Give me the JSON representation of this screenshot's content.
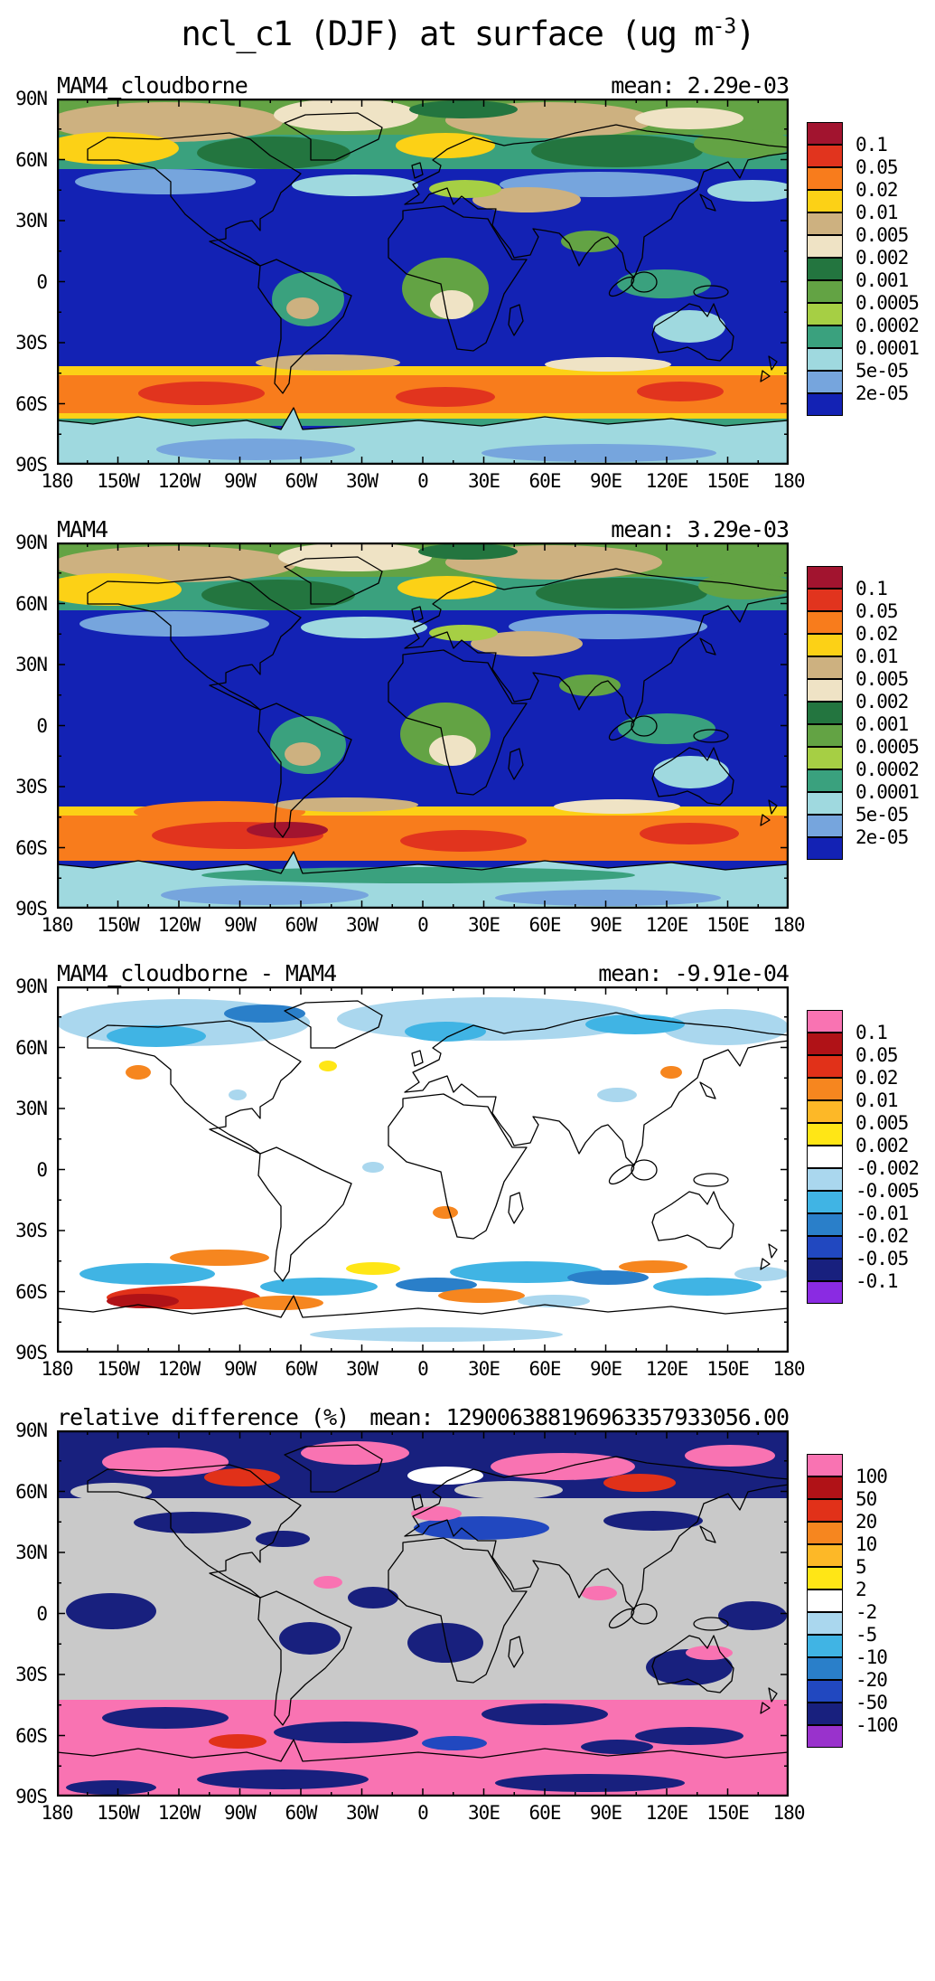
{
  "figure": {
    "title_full": "ncl_c1 (DJF) at surface (ug m-3)"
  },
  "main_title": {
    "pre": "ncl_c1 (DJF) at surface (ug m",
    "sup": "-3",
    "post": ")"
  },
  "axes": {
    "lat_ticks": [
      "90N",
      "60N",
      "30N",
      "0",
      "30S",
      "60S",
      "90S"
    ],
    "lon_ticks": [
      "180",
      "150W",
      "120W",
      "90W",
      "60W",
      "30W",
      "0",
      "30E",
      "60E",
      "90E",
      "120E",
      "150E",
      "180"
    ]
  },
  "panels": [
    {
      "title": "MAM4_cloudborne",
      "mean": "mean: 2.29e-03",
      "colorbar": {
        "labels": [
          "0.1",
          "0.05",
          "0.02",
          "0.01",
          "0.005",
          "0.002",
          "0.001",
          "0.0005",
          "0.0002",
          "0.0001",
          "5e-05",
          "2e-05"
        ],
        "colors": [
          "#a2142f",
          "#e1341e",
          "#f87c1c",
          "#fcd116",
          "#cdb180",
          "#efe3c5",
          "#23753f",
          "#63a344",
          "#a6cf44",
          "#3aa17e",
          "#9fd9df",
          "#76a5dd",
          "#1322b4"
        ]
      }
    },
    {
      "title": "MAM4",
      "mean": "mean: 3.29e-03",
      "colorbar": {
        "labels": [
          "0.1",
          "0.05",
          "0.02",
          "0.01",
          "0.005",
          "0.002",
          "0.001",
          "0.0005",
          "0.0002",
          "0.0001",
          "5e-05",
          "2e-05"
        ],
        "colors": [
          "#a2142f",
          "#e1341e",
          "#f87c1c",
          "#fcd116",
          "#cdb180",
          "#efe3c5",
          "#23753f",
          "#63a344",
          "#a6cf44",
          "#3aa17e",
          "#9fd9df",
          "#76a5dd",
          "#1322b4"
        ]
      }
    },
    {
      "title": "MAM4_cloudborne - MAM4",
      "mean": "mean: -9.91e-04",
      "colorbar": {
        "labels": [
          "0.1",
          "0.05",
          "0.02",
          "0.01",
          "0.005",
          "0.002",
          "-0.002",
          "-0.005",
          "-0.01",
          "-0.02",
          "-0.05",
          "-0.1"
        ],
        "colors": [
          "#f973b2",
          "#b01217",
          "#e13119",
          "#f6861f",
          "#fdb827",
          "#ffe616",
          "#ffffff",
          "#aad7ee",
          "#40b4e4",
          "#2a7fc9",
          "#2148c0",
          "#18207e",
          "#8a2be2"
        ]
      }
    },
    {
      "title": "relative difference (%)",
      "mean": "mean: 129006388196963357933056.00",
      "colorbar": {
        "labels": [
          "100",
          "50",
          "20",
          "10",
          "5",
          "2",
          "-2",
          "-5",
          "-10",
          "-20",
          "-50",
          "-100"
        ],
        "colors": [
          "#f973b2",
          "#b01217",
          "#e13119",
          "#f6861f",
          "#fdb827",
          "#ffe616",
          "#ffffff",
          "#aad7ee",
          "#40b4e4",
          "#2a7fc9",
          "#2148c0",
          "#18207e",
          "#9932cc"
        ]
      }
    }
  ],
  "chart_data": [
    {
      "type": "heatmap",
      "subtype": "filled-contour global latitude-longitude map",
      "panel": 1,
      "figure_title": "ncl_c1 (DJF) at surface (ug m-3)",
      "title": "MAM4_cloudborne",
      "mean": 0.00229,
      "mean_label": "mean: 2.29e-03",
      "units": "ug m-3",
      "contour_levels": [
        2e-05,
        5e-05,
        0.0001,
        0.0002,
        0.0005,
        0.001,
        0.002,
        0.005,
        0.01,
        0.02,
        0.05,
        0.1
      ],
      "palette_high_to_low": [
        "#a2142f",
        "#e1341e",
        "#f87c1c",
        "#fcd116",
        "#cdb180",
        "#efe3c5",
        "#23753f",
        "#63a344",
        "#a6cf44",
        "#3aa17e",
        "#9fd9df",
        "#76a5dd",
        "#1322b4"
      ],
      "lon_range": [
        -180,
        180
      ],
      "lat_range": [
        -90,
        90
      ],
      "lon_ticks": [
        "180",
        "150W",
        "120W",
        "90W",
        "60W",
        "30W",
        "0",
        "30E",
        "60E",
        "90E",
        "120E",
        "150E",
        "180"
      ],
      "lat_ticks": [
        "90N",
        "60N",
        "30N",
        "0",
        "30S",
        "60S",
        "90S"
      ],
      "legend_position": "right vertical labelbar",
      "background_fill": "#1322b4",
      "pattern_summary": "Tropical and midlatitude oceans at minimum (< 2e-05, dark blue); NH high-latitude land and Arctic ~0.0005-0.01 (greens, tan, beige, yellow patches over Alaska and Scandinavia); circumpolar Southern Ocean band ~45S-65S at 0.02-0.1 (orange with red cores); Antarctic interior ~5e-05-2e-04 (pale cyan/light blue)."
    },
    {
      "type": "heatmap",
      "subtype": "filled-contour global latitude-longitude map",
      "panel": 2,
      "figure_title": "ncl_c1 (DJF) at surface (ug m-3)",
      "title": "MAM4",
      "mean": 0.00329,
      "mean_label": "mean: 3.29e-03",
      "units": "ug m-3",
      "contour_levels": [
        2e-05,
        5e-05,
        0.0001,
        0.0002,
        0.0005,
        0.001,
        0.002,
        0.005,
        0.01,
        0.02,
        0.05,
        0.1
      ],
      "palette_high_to_low": [
        "#a2142f",
        "#e1341e",
        "#f87c1c",
        "#fcd116",
        "#cdb180",
        "#efe3c5",
        "#23753f",
        "#63a344",
        "#a6cf44",
        "#3aa17e",
        "#9fd9df",
        "#76a5dd",
        "#1322b4"
      ],
      "lon_range": [
        -180,
        180
      ],
      "lat_range": [
        -90,
        90
      ],
      "lon_ticks": [
        "180",
        "150W",
        "120W",
        "90W",
        "60W",
        "30W",
        "0",
        "30E",
        "60E",
        "90E",
        "120E",
        "150E",
        "180"
      ],
      "lat_ticks": [
        "90N",
        "60N",
        "30N",
        "0",
        "30S",
        "60S",
        "90S"
      ],
      "legend_position": "right vertical labelbar",
      "background_fill": "#1322b4",
      "pattern_summary": "Same field as panel 1 but larger values: Southern Ocean band 0.02-0.1 is broader with larger red (0.05-0.1) cores, especially southeast Pacific and South Atlantic; NH high-latitude land greens/tans similar; tropical oceans remain below 2e-05."
    },
    {
      "type": "heatmap",
      "subtype": "filled-contour global difference map",
      "panel": 3,
      "figure_title": "ncl_c1 (DJF) at surface (ug m-3)",
      "title": "MAM4_cloudborne - MAM4",
      "mean": -0.000991,
      "mean_label": "mean: -9.91e-04",
      "units": "ug m-3",
      "contour_levels": [
        -0.1,
        -0.05,
        -0.02,
        -0.01,
        -0.005,
        -0.002,
        0.002,
        0.005,
        0.01,
        0.02,
        0.05,
        0.1
      ],
      "palette_high_to_low": [
        "#f973b2",
        "#b01217",
        "#e13119",
        "#f6861f",
        "#fdb827",
        "#ffe616",
        "#ffffff",
        "#aad7ee",
        "#40b4e4",
        "#2a7fc9",
        "#2148c0",
        "#18207e",
        "#8a2be2"
      ],
      "lon_range": [
        -180,
        180
      ],
      "lat_range": [
        -90,
        90
      ],
      "lon_ticks": [
        "180",
        "150W",
        "120W",
        "90W",
        "60W",
        "30W",
        "0",
        "30E",
        "60E",
        "90E",
        "120E",
        "150E",
        "180"
      ],
      "lat_ticks": [
        "90N",
        "60N",
        "30N",
        "0",
        "30S",
        "60S",
        "90S"
      ],
      "legend_position": "right vertical labelbar",
      "background_fill": "#ffffff",
      "pattern_summary": "Mostly near zero (white) in tropics and midlatitudes; negative (pale blue to blue, -0.002 to -0.02) across NH high latitudes; mottled Southern Ocean band 45S-65S with alternating negative (cyan/blue) and positive (orange, red up to 0.05-0.1 in the southeast Pacific) patches."
    },
    {
      "type": "heatmap",
      "subtype": "filled-contour global relative-difference map",
      "panel": 4,
      "figure_title": "ncl_c1 (DJF) at surface (ug m-3)",
      "title": "relative difference (%)",
      "mean": 1.2900638819696336e+23,
      "mean_label": "mean: 129006388196963357933056.00",
      "units": "%",
      "contour_levels": [
        -100,
        -50,
        -20,
        -10,
        -5,
        -2,
        2,
        5,
        10,
        20,
        50,
        100
      ],
      "palette_high_to_low": [
        "#f973b2",
        "#b01217",
        "#e13119",
        "#f6861f",
        "#fdb827",
        "#ffe616",
        "#ffffff",
        "#aad7ee",
        "#40b4e4",
        "#2a7fc9",
        "#2148c0",
        "#18207e",
        "#9932cc"
      ],
      "lon_range": [
        -180,
        180
      ],
      "lat_range": [
        -90,
        90
      ],
      "lon_ticks": [
        "180",
        "150W",
        "120W",
        "90W",
        "60W",
        "30W",
        "0",
        "30E",
        "60E",
        "90E",
        "120E",
        "150E",
        "180"
      ],
      "lat_ticks": [
        "90N",
        "60N",
        "30N",
        "0",
        "30S",
        "60S",
        "90S"
      ],
      "legend_position": "right vertical labelbar",
      "background_fill": "#c9c9c9",
      "mask_color": "#c9c9c9",
      "pattern_summary": "Gray (masked / near-zero denominator) over most tropics and midlatitudes; strong mottling of large negative (navy, < -100 to -50) and large positive (pink, > 100; red 20-50) values over NH high latitudes, Southern Ocean band and Antarctica; title and mean strings overlap in the header."
    }
  ]
}
